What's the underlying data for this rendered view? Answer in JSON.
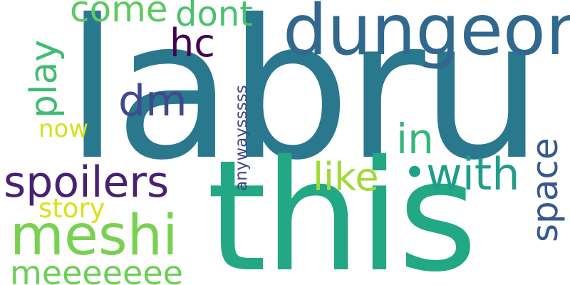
{
  "words": [
    {
      "text": "labru",
      "color": "#2a788e"
    },
    {
      "text": "this",
      "color": "#22a884"
    },
    {
      "text": "dungeon",
      "color": "#31688e"
    },
    {
      "text": "meshi",
      "color": "#7ad151"
    },
    {
      "text": "spoilers",
      "color": "#482173"
    },
    {
      "text": "with",
      "color": "#1f9e89"
    },
    {
      "text": "like",
      "color": "#a0da39"
    },
    {
      "text": "space",
      "color": "#38598c"
    },
    {
      "text": "in",
      "color": "#35b779"
    },
    {
      "text": "dm",
      "color": "#3e4a89"
    },
    {
      "text": "hc",
      "color": "#440154"
    },
    {
      "text": "come",
      "color": "#5ec962"
    },
    {
      "text": "dont",
      "color": "#4ac16d"
    },
    {
      "text": "play",
      "color": "#3fbc73"
    },
    {
      "text": "now",
      "color": "#d2e21b"
    },
    {
      "text": "story",
      "color": "#d8e219"
    },
    {
      "text": "meeeeeee",
      "color": "#6ece58"
    },
    {
      "text": "anywaysssss",
      "color": "#414487"
    },
    {
      "text": "•",
      "color": "#1fa187"
    }
  ]
}
